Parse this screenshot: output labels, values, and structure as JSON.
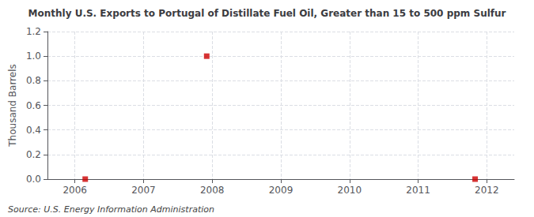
{
  "chart_data": {
    "type": "scatter",
    "title": "Monthly U.S. Exports to Portugal of Distillate Fuel Oil, Greater than 15 to 500 ppm Sulfur",
    "ylabel": "Thousand Barrels",
    "annotations": [
      "Source: U.S. Energy Information Administration"
    ],
    "x": [
      2006.15,
      2007.92,
      2011.83
    ],
    "values": [
      0.0,
      1.0,
      0.0
    ],
    "color": "#cc0000",
    "marker": "square",
    "xlim": [
      2005.6,
      2012.4
    ],
    "ylim": [
      0.0,
      1.2
    ],
    "xticks": [
      2006,
      2007,
      2008,
      2009,
      2010,
      2011,
      2012
    ],
    "yticks": [
      {
        "value": 0.0,
        "label": "0.0"
      },
      0.2,
      0.4,
      0.6,
      0.8,
      {
        "value": 1.0,
        "label": "1.0"
      },
      1.2
    ],
    "grid": true
  }
}
